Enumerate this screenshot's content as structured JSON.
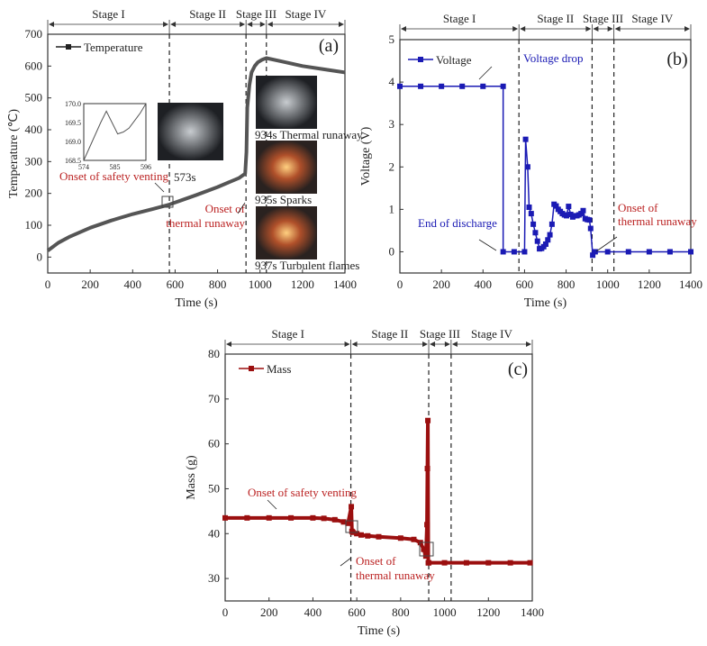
{
  "chart_data": [
    {
      "type": "line",
      "panel_label": "(a)",
      "xlabel": "Time (s)",
      "ylabel": "Temperature (℃)",
      "xlim": [
        0,
        1400
      ],
      "ylim": [
        -50,
        700
      ],
      "xticks": [
        0,
        200,
        400,
        600,
        800,
        1000,
        1200,
        1400
      ],
      "yticks": [
        0,
        100,
        200,
        300,
        400,
        500,
        600,
        700
      ],
      "stages": [
        "Stage I",
        "Stage II",
        "Stage III",
        "Stage IV"
      ],
      "stage_boundaries": [
        573,
        934,
        1030
      ],
      "color": "#555555",
      "series": [
        {
          "name": "Temperature",
          "x": [
            0,
            50,
            100,
            200,
            300,
            400,
            500,
            573,
            700,
            800,
            900,
            930,
            936,
            940,
            950,
            960,
            975,
            990,
            1010,
            1030,
            1100,
            1200,
            1300,
            1400
          ],
          "y": [
            20,
            45,
            63,
            92,
            115,
            135,
            152,
            165,
            195,
            220,
            248,
            262,
            330,
            470,
            540,
            580,
            600,
            612,
            620,
            625,
            615,
            600,
            590,
            580
          ]
        }
      ],
      "annotations": [
        "Onset of safety venting",
        "573s",
        "Onset of",
        "thermal runaway"
      ],
      "inset": {
        "xticks": [
          "574",
          "585",
          "596"
        ],
        "yticks": [
          "168.5",
          "169.0",
          "169.5",
          "170.0"
        ],
        "x": [
          574,
          577,
          580,
          582,
          584,
          586,
          588,
          590,
          592,
          594,
          596
        ],
        "y": [
          168.5,
          169.0,
          169.5,
          169.8,
          169.5,
          169.2,
          169.25,
          169.35,
          169.55,
          169.75,
          170.0
        ]
      },
      "photos": [
        "934s Thermal runaway",
        "935s Sparks",
        "937s Turbulent flames"
      ]
    },
    {
      "type": "line",
      "panel_label": "(b)",
      "xlabel": "Time (s)",
      "ylabel": "Voltage (V)",
      "xlim": [
        0,
        1400
      ],
      "ylim": [
        -0.5,
        5
      ],
      "xticks": [
        0,
        200,
        400,
        600,
        800,
        1000,
        1200,
        1400
      ],
      "yticks": [
        0,
        1,
        2,
        3,
        4,
        5
      ],
      "stages": [
        "Stage I",
        "Stage II",
        "Stage III",
        "Stage IV"
      ],
      "stage_boundaries": [
        573,
        925,
        1030
      ],
      "color": "#1a1ab4",
      "series": [
        {
          "name": "Voltage",
          "x": [
            0,
            100,
            200,
            300,
            400,
            497,
            497,
            550,
            600,
            605,
            615,
            622,
            632,
            642,
            652,
            662,
            672,
            682,
            692,
            702,
            712,
            722,
            732,
            742,
            752,
            762,
            772,
            782,
            792,
            802,
            812,
            822,
            832,
            842,
            852,
            862,
            872,
            882,
            892,
            902,
            912,
            918,
            928,
            940,
            1000,
            1100,
            1200,
            1300,
            1400
          ],
          "y": [
            3.9,
            3.9,
            3.9,
            3.9,
            3.9,
            3.9,
            0,
            0,
            0,
            2.65,
            2.0,
            1.05,
            0.9,
            0.65,
            0.45,
            0.25,
            0.07,
            0.08,
            0.12,
            0.18,
            0.28,
            0.4,
            0.65,
            1.12,
            1.08,
            1.0,
            0.95,
            0.9,
            0.87,
            0.85,
            1.07,
            0.88,
            0.82,
            0.85,
            0.85,
            0.87,
            0.9,
            0.97,
            0.78,
            0.76,
            0.75,
            0.55,
            -0.08,
            0,
            0,
            0,
            0,
            0,
            0
          ]
        }
      ],
      "annotations": [
        "Voltage drop",
        "End of discharge",
        "Onset of",
        "thermal runaway"
      ]
    },
    {
      "type": "line",
      "panel_label": "(c)",
      "xlabel": "Time (s)",
      "ylabel": "Mass (g)",
      "xlim": [
        0,
        1400
      ],
      "ylim": [
        25,
        80
      ],
      "xticks": [
        0,
        200,
        400,
        600,
        800,
        1000,
        1200,
        1400
      ],
      "yticks": [
        30,
        40,
        50,
        60,
        70,
        80
      ],
      "stages": [
        "Stage I",
        "Stage II",
        "Stage III",
        "Stage IV"
      ],
      "stage_boundaries": [
        573,
        928,
        1030
      ],
      "color": "#9b0f0f",
      "series": [
        {
          "name": "Mass",
          "x": [
            0,
            100,
            200,
            300,
            400,
            450,
            500,
            540,
            560,
            575,
            578,
            582,
            600,
            620,
            650,
            700,
            800,
            860,
            890,
            905,
            915,
            920,
            922,
            924,
            926,
            928,
            1000,
            1100,
            1200,
            1300,
            1390
          ],
          "y": [
            43.5,
            43.5,
            43.5,
            43.5,
            43.5,
            43.4,
            43.1,
            42.6,
            42.3,
            46,
            40.5,
            40.3,
            40,
            39.7,
            39.5,
            39.3,
            39.0,
            38.7,
            38.0,
            36.5,
            35,
            42,
            54.5,
            65.2,
            33.5,
            33.5,
            33.5,
            33.5,
            33.5,
            33.5,
            33.5
          ]
        }
      ],
      "annotations": [
        "Onset of safety venting",
        "Onset of",
        "thermal runaway"
      ]
    }
  ]
}
